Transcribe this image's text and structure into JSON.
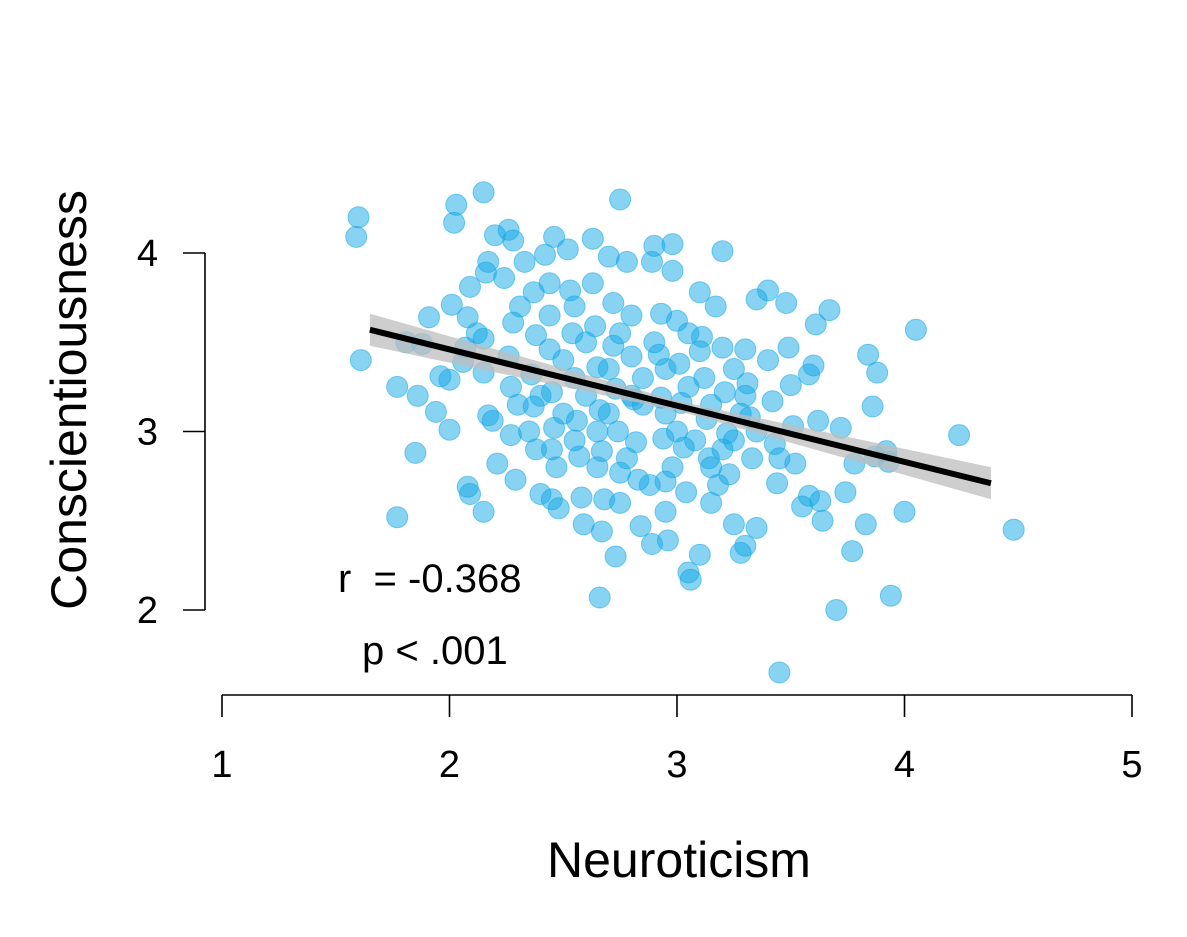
{
  "chart_data": {
    "type": "scatter",
    "xlabel": "Neuroticism",
    "ylabel": "Conscientiousness",
    "xlim": [
      1,
      5
    ],
    "ylim": [
      2,
      4
    ],
    "x_ticks": [
      "1",
      "2",
      "3",
      "4",
      "5"
    ],
    "y_ticks": [
      "2",
      "3",
      "4"
    ],
    "x_tick_values": [
      1,
      2,
      3,
      4,
      5
    ],
    "y_tick_values": [
      2,
      3,
      4
    ],
    "grid": false,
    "point_color": "#14A8E6",
    "regression": {
      "x_start": 1.65,
      "y_start": 3.57,
      "x_end": 4.38,
      "y_end": 2.71,
      "color": "#000000",
      "band_color": "#BDBDBD"
    },
    "annotations": {
      "r_text": "r  = -0.368",
      "p_text": "p < .001"
    },
    "points": [
      [
        1.6,
        4.2
      ],
      [
        1.59,
        4.09
      ],
      [
        2.02,
        4.17
      ],
      [
        2.15,
        4.34
      ],
      [
        2.03,
        4.27
      ],
      [
        1.61,
        3.4
      ],
      [
        1.81,
        3.5
      ],
      [
        1.77,
        3.25
      ],
      [
        1.77,
        2.52
      ],
      [
        1.85,
        2.88
      ],
      [
        1.91,
        3.64
      ],
      [
        1.88,
        3.49
      ],
      [
        1.94,
        3.11
      ],
      [
        1.96,
        3.31
      ],
      [
        1.86,
        3.2
      ],
      [
        2.0,
        3.01
      ],
      [
        2.0,
        3.29
      ],
      [
        2.01,
        3.71
      ],
      [
        2.09,
        3.81
      ],
      [
        2.08,
        3.64
      ],
      [
        2.07,
        3.47
      ],
      [
        2.06,
        3.39
      ],
      [
        2.08,
        2.69
      ],
      [
        2.09,
        2.65
      ],
      [
        2.15,
        2.55
      ],
      [
        2.21,
        2.82
      ],
      [
        2.15,
        3.33
      ],
      [
        2.15,
        3.52
      ],
      [
        2.17,
        3.09
      ],
      [
        2.19,
        3.06
      ],
      [
        2.16,
        3.89
      ],
      [
        2.17,
        3.95
      ],
      [
        2.2,
        4.1
      ],
      [
        2.26,
        4.13
      ],
      [
        2.28,
        4.07
      ],
      [
        2.24,
        3.86
      ],
      [
        2.28,
        3.61
      ],
      [
        2.26,
        3.42
      ],
      [
        2.27,
        3.25
      ],
      [
        2.3,
        3.15
      ],
      [
        2.27,
        2.98
      ],
      [
        2.29,
        2.73
      ],
      [
        2.33,
        3.95
      ],
      [
        2.37,
        3.78
      ],
      [
        2.38,
        3.54
      ],
      [
        2.36,
        3.32
      ],
      [
        2.37,
        3.14
      ],
      [
        2.38,
        2.9
      ],
      [
        2.4,
        2.65
      ],
      [
        2.45,
        2.62
      ],
      [
        2.42,
        3.99
      ],
      [
        2.44,
        3.83
      ],
      [
        2.44,
        3.65
      ],
      [
        2.44,
        3.46
      ],
      [
        2.45,
        3.22
      ],
      [
        2.46,
        3.02
      ],
      [
        2.47,
        2.8
      ],
      [
        2.48,
        2.57
      ],
      [
        2.46,
        4.09
      ],
      [
        2.52,
        4.02
      ],
      [
        2.53,
        3.79
      ],
      [
        2.54,
        3.55
      ],
      [
        2.55,
        3.3
      ],
      [
        2.56,
        3.06
      ],
      [
        2.57,
        2.86
      ],
      [
        2.58,
        2.63
      ],
      [
        2.59,
        2.48
      ],
      [
        2.63,
        4.08
      ],
      [
        2.63,
        3.83
      ],
      [
        2.64,
        3.59
      ],
      [
        2.65,
        3.36
      ],
      [
        2.66,
        3.12
      ],
      [
        2.67,
        2.89
      ],
      [
        2.68,
        2.62
      ],
      [
        2.67,
        2.44
      ],
      [
        2.66,
        2.07
      ],
      [
        2.7,
        3.98
      ],
      [
        2.72,
        3.72
      ],
      [
        2.72,
        3.48
      ],
      [
        2.73,
        3.24
      ],
      [
        2.74,
        3.0
      ],
      [
        2.75,
        2.77
      ],
      [
        2.75,
        2.6
      ],
      [
        2.73,
        2.3
      ],
      [
        2.75,
        4.3
      ],
      [
        2.78,
        3.95
      ],
      [
        2.8,
        3.65
      ],
      [
        2.8,
        3.42
      ],
      [
        2.81,
        3.18
      ],
      [
        2.82,
        2.94
      ],
      [
        2.83,
        2.73
      ],
      [
        2.84,
        2.47
      ],
      [
        2.89,
        3.95
      ],
      [
        2.9,
        4.04
      ],
      [
        2.93,
        3.66
      ],
      [
        2.92,
        3.43
      ],
      [
        2.93,
        3.19
      ],
      [
        2.94,
        2.96
      ],
      [
        2.95,
        2.72
      ],
      [
        2.95,
        2.55
      ],
      [
        2.89,
        2.37
      ],
      [
        2.96,
        2.39
      ],
      [
        2.98,
        4.05
      ],
      [
        2.98,
        3.9
      ],
      [
        3.0,
        3.62
      ],
      [
        3.01,
        3.38
      ],
      [
        3.02,
        3.16
      ],
      [
        3.03,
        2.91
      ],
      [
        3.04,
        2.66
      ],
      [
        3.05,
        2.21
      ],
      [
        3.06,
        2.17
      ],
      [
        3.1,
        3.78
      ],
      [
        3.11,
        3.53
      ],
      [
        3.12,
        3.3
      ],
      [
        3.13,
        3.07
      ],
      [
        3.14,
        2.85
      ],
      [
        3.15,
        2.6
      ],
      [
        3.1,
        2.31
      ],
      [
        3.17,
        3.7
      ],
      [
        3.2,
        4.01
      ],
      [
        3.2,
        3.47
      ],
      [
        3.21,
        3.22
      ],
      [
        3.22,
        2.99
      ],
      [
        3.23,
        2.76
      ],
      [
        3.25,
        2.48
      ],
      [
        3.28,
        2.32
      ],
      [
        3.3,
        2.36
      ],
      [
        3.3,
        3.46
      ],
      [
        3.31,
        3.27
      ],
      [
        3.32,
        3.08
      ],
      [
        3.33,
        2.85
      ],
      [
        3.35,
        2.46
      ],
      [
        3.35,
        3.74
      ],
      [
        3.4,
        3.79
      ],
      [
        3.4,
        3.4
      ],
      [
        3.42,
        3.17
      ],
      [
        3.43,
        2.93
      ],
      [
        3.44,
        2.71
      ],
      [
        3.45,
        1.65
      ],
      [
        3.48,
        3.72
      ],
      [
        3.49,
        3.47
      ],
      [
        3.5,
        3.26
      ],
      [
        3.51,
        3.03
      ],
      [
        3.52,
        2.82
      ],
      [
        3.55,
        2.58
      ],
      [
        3.58,
        2.64
      ],
      [
        3.58,
        3.32
      ],
      [
        3.6,
        3.37
      ],
      [
        3.61,
        3.6
      ],
      [
        3.62,
        3.06
      ],
      [
        3.63,
        2.61
      ],
      [
        3.64,
        2.5
      ],
      [
        3.67,
        3.68
      ],
      [
        3.7,
        2.0
      ],
      [
        3.72,
        3.02
      ],
      [
        3.74,
        2.66
      ],
      [
        3.77,
        2.33
      ],
      [
        3.78,
        2.82
      ],
      [
        3.83,
        2.48
      ],
      [
        3.84,
        3.43
      ],
      [
        3.86,
        3.14
      ],
      [
        3.87,
        2.86
      ],
      [
        3.88,
        3.33
      ],
      [
        3.92,
        2.89
      ],
      [
        3.93,
        2.83
      ],
      [
        3.94,
        2.08
      ],
      [
        4.0,
        2.55
      ],
      [
        4.05,
        3.57
      ],
      [
        4.24,
        2.98
      ],
      [
        4.48,
        2.45
      ],
      [
        2.12,
        3.55
      ],
      [
        2.31,
        3.7
      ],
      [
        2.5,
        3.4
      ],
      [
        2.6,
        3.2
      ],
      [
        2.7,
        3.35
      ],
      [
        2.85,
        3.3
      ],
      [
        2.95,
        3.1
      ],
      [
        3.05,
        3.25
      ],
      [
        3.15,
        3.15
      ],
      [
        3.25,
        2.95
      ],
      [
        2.55,
        2.95
      ],
      [
        2.65,
        2.8
      ],
      [
        2.78,
        2.85
      ],
      [
        2.88,
        2.7
      ],
      [
        2.98,
        2.8
      ],
      [
        3.08,
        2.95
      ],
      [
        3.18,
        2.7
      ],
      [
        3.28,
        3.1
      ],
      [
        2.4,
        3.2
      ],
      [
        2.5,
        3.1
      ],
      [
        2.6,
        3.5
      ],
      [
        2.7,
        3.1
      ],
      [
        2.8,
        3.2
      ],
      [
        2.9,
        3.5
      ],
      [
        3.0,
        3.0
      ],
      [
        3.1,
        3.45
      ],
      [
        3.2,
        2.9
      ],
      [
        3.3,
        3.2
      ],
      [
        2.35,
        3.0
      ],
      [
        2.45,
        2.9
      ],
      [
        2.55,
        3.7
      ],
      [
        2.65,
        3.0
      ],
      [
        2.75,
        3.55
      ],
      [
        2.85,
        3.15
      ],
      [
        2.95,
        3.35
      ],
      [
        3.05,
        3.55
      ],
      [
        3.15,
        2.8
      ],
      [
        3.25,
        3.35
      ],
      [
        3.35,
        3.0
      ],
      [
        3.45,
        2.85
      ]
    ]
  }
}
